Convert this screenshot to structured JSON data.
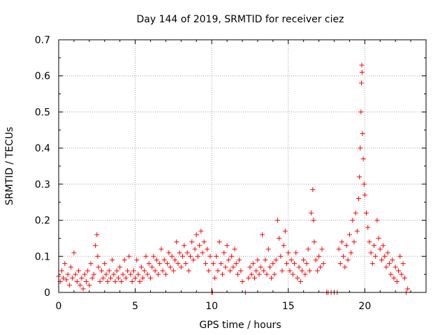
{
  "chart_data": {
    "type": "scatter",
    "title": "Day 144 of 2019, SRMTID for receiver ciez",
    "xlabel": "GPS time / hours",
    "ylabel": "SRMTID / TECUs",
    "xlim": [
      0,
      24
    ],
    "ylim": [
      0,
      0.7
    ],
    "grid": true,
    "marker": "+",
    "xticks": [
      0,
      5,
      10,
      15,
      20
    ],
    "xtick_labels": [
      "0",
      "5",
      "10",
      "15",
      "20"
    ],
    "yticks": [
      0,
      0.1,
      0.2,
      0.3,
      0.4,
      0.5,
      0.6,
      0.7
    ],
    "ytick_labels": [
      "0",
      "0.1",
      "0.2",
      "0.3",
      "0.4",
      "0.5",
      "0.6",
      "0.7"
    ],
    "series": [
      {
        "name": "SRMTID",
        "color": "#ff0000",
        "points": [
          [
            0.0,
            0.045
          ],
          [
            0.1,
            0.03
          ],
          [
            0.2,
            0.06
          ],
          [
            0.3,
            0.04
          ],
          [
            0.4,
            0.08
          ],
          [
            0.5,
            0.035
          ],
          [
            0.6,
            0.05
          ],
          [
            0.7,
            0.02
          ],
          [
            0.8,
            0.07
          ],
          [
            0.9,
            0.04
          ],
          [
            1.0,
            0.11
          ],
          [
            1.1,
            0.05
          ],
          [
            1.2,
            0.03
          ],
          [
            1.3,
            0.06
          ],
          [
            1.4,
            0.02
          ],
          [
            1.5,
            0.04
          ],
          [
            1.6,
            0.01
          ],
          [
            1.7,
            0.05
          ],
          [
            1.8,
            0.03
          ],
          [
            1.9,
            0.06
          ],
          [
            2.0,
            0.02
          ],
          [
            2.1,
            0.08
          ],
          [
            2.2,
            0.04
          ],
          [
            2.3,
            0.05
          ],
          [
            2.4,
            0.13
          ],
          [
            2.5,
            0.16
          ],
          [
            2.55,
            0.1
          ],
          [
            2.6,
            0.07
          ],
          [
            2.7,
            0.03
          ],
          [
            2.8,
            0.06
          ],
          [
            2.9,
            0.04
          ],
          [
            3.0,
            0.08
          ],
          [
            3.1,
            0.05
          ],
          [
            3.2,
            0.03
          ],
          [
            3.3,
            0.06
          ],
          [
            3.4,
            0.04
          ],
          [
            3.5,
            0.09
          ],
          [
            3.6,
            0.05
          ],
          [
            3.7,
            0.03
          ],
          [
            3.8,
            0.06
          ],
          [
            3.9,
            0.04
          ],
          [
            4.0,
            0.07
          ],
          [
            4.1,
            0.03
          ],
          [
            4.2,
            0.05
          ],
          [
            4.3,
            0.09
          ],
          [
            4.4,
            0.04
          ],
          [
            4.5,
            0.06
          ],
          [
            4.6,
            0.1
          ],
          [
            4.7,
            0.05
          ],
          [
            4.8,
            0.03
          ],
          [
            4.9,
            0.06
          ],
          [
            5.0,
            0.04
          ],
          [
            5.1,
            0.09
          ],
          [
            5.2,
            0.05
          ],
          [
            5.3,
            0.03
          ],
          [
            5.4,
            0.07
          ],
          [
            5.5,
            0.04
          ],
          [
            5.6,
            0.06
          ],
          [
            5.7,
            0.1
          ],
          [
            5.8,
            0.05
          ],
          [
            5.9,
            0.08
          ],
          [
            6.0,
            0.04
          ],
          [
            6.1,
            0.07
          ],
          [
            6.2,
            0.1
          ],
          [
            6.3,
            0.06
          ],
          [
            6.4,
            0.09
          ],
          [
            6.5,
            0.05
          ],
          [
            6.6,
            0.08
          ],
          [
            6.7,
            0.12
          ],
          [
            6.8,
            0.06
          ],
          [
            6.9,
            0.09
          ],
          [
            7.0,
            0.05
          ],
          [
            7.1,
            0.08
          ],
          [
            7.2,
            0.11
          ],
          [
            7.3,
            0.07
          ],
          [
            7.4,
            0.1
          ],
          [
            7.5,
            0.06
          ],
          [
            7.6,
            0.09
          ],
          [
            7.7,
            0.14
          ],
          [
            7.8,
            0.08
          ],
          [
            7.9,
            0.11
          ],
          [
            8.0,
            0.07
          ],
          [
            8.1,
            0.1
          ],
          [
            8.2,
            0.13
          ],
          [
            8.3,
            0.08
          ],
          [
            8.4,
            0.11
          ],
          [
            8.5,
            0.06
          ],
          [
            8.6,
            0.1
          ],
          [
            8.7,
            0.14
          ],
          [
            8.8,
            0.09
          ],
          [
            8.9,
            0.12
          ],
          [
            9.0,
            0.16
          ],
          [
            9.1,
            0.1
          ],
          [
            9.2,
            0.13
          ],
          [
            9.3,
            0.17
          ],
          [
            9.4,
            0.11
          ],
          [
            9.5,
            0.14
          ],
          [
            9.6,
            0.08
          ],
          [
            9.7,
            0.12
          ],
          [
            9.8,
            0.06
          ],
          [
            9.9,
            0.1
          ],
          [
            10.0,
            0.0
          ],
          [
            10.05,
            0.0
          ],
          [
            10.1,
            0.08
          ],
          [
            10.2,
            0.04
          ],
          [
            10.3,
            0.1
          ],
          [
            10.4,
            0.06
          ],
          [
            10.5,
            0.14
          ],
          [
            10.6,
            0.08
          ],
          [
            10.7,
            0.05
          ],
          [
            10.8,
            0.11
          ],
          [
            10.9,
            0.07
          ],
          [
            11.0,
            0.13
          ],
          [
            11.1,
            0.09
          ],
          [
            11.2,
            0.06
          ],
          [
            11.3,
            0.1
          ],
          [
            11.4,
            0.07
          ],
          [
            11.5,
            0.12
          ],
          [
            11.6,
            0.08
          ],
          [
            11.7,
            0.05
          ],
          [
            11.8,
            0.09
          ],
          [
            11.9,
            0.06
          ],
          [
            12.0,
            0.03
          ],
          [
            12.2,
            0.0
          ],
          [
            12.4,
            0.04
          ],
          [
            12.5,
            0.07
          ],
          [
            12.6,
            0.05
          ],
          [
            12.7,
            0.08
          ],
          [
            12.8,
            0.04
          ],
          [
            12.9,
            0.06
          ],
          [
            13.0,
            0.09
          ],
          [
            13.1,
            0.05
          ],
          [
            13.2,
            0.07
          ],
          [
            13.3,
            0.16
          ],
          [
            13.4,
            0.06
          ],
          [
            13.5,
            0.09
          ],
          [
            13.6,
            0.05
          ],
          [
            13.7,
            0.12
          ],
          [
            13.8,
            0.07
          ],
          [
            13.9,
            0.04
          ],
          [
            14.0,
            0.08
          ],
          [
            14.1,
            0.05
          ],
          [
            14.2,
            0.09
          ],
          [
            14.3,
            0.2
          ],
          [
            14.4,
            0.15
          ],
          [
            14.5,
            0.1
          ],
          [
            14.6,
            0.06
          ],
          [
            14.7,
            0.13
          ],
          [
            14.8,
            0.17
          ],
          [
            14.9,
            0.08
          ],
          [
            15.0,
            0.11
          ],
          [
            15.1,
            0.06
          ],
          [
            15.2,
            0.09
          ],
          [
            15.3,
            0.05
          ],
          [
            15.4,
            0.08
          ],
          [
            15.5,
            0.11
          ],
          [
            15.6,
            0.04
          ],
          [
            15.7,
            0.07
          ],
          [
            15.8,
            0.03
          ],
          [
            15.9,
            0.06
          ],
          [
            16.0,
            0.09
          ],
          [
            16.1,
            0.05
          ],
          [
            16.2,
            0.08
          ],
          [
            16.3,
            0.12
          ],
          [
            16.4,
            0.06
          ],
          [
            16.5,
            0.22
          ],
          [
            16.6,
            0.285
          ],
          [
            16.65,
            0.2
          ],
          [
            16.7,
            0.14
          ],
          [
            16.8,
            0.09
          ],
          [
            16.9,
            0.06
          ],
          [
            17.0,
            0.1
          ],
          [
            17.1,
            0.07
          ],
          [
            17.2,
            0.12
          ],
          [
            17.3,
            0.08
          ],
          [
            17.5,
            0.0
          ],
          [
            17.6,
            0.0
          ],
          [
            17.8,
            0.0
          ],
          [
            18.0,
            0.0
          ],
          [
            18.2,
            0.0
          ],
          [
            18.3,
            0.12
          ],
          [
            18.4,
            0.08
          ],
          [
            18.5,
            0.14
          ],
          [
            18.6,
            0.1
          ],
          [
            18.7,
            0.07
          ],
          [
            18.8,
            0.13
          ],
          [
            18.9,
            0.09
          ],
          [
            19.0,
            0.16
          ],
          [
            19.1,
            0.11
          ],
          [
            19.2,
            0.2
          ],
          [
            19.3,
            0.14
          ],
          [
            19.4,
            0.22
          ],
          [
            19.5,
            0.17
          ],
          [
            19.6,
            0.26
          ],
          [
            19.65,
            0.32
          ],
          [
            19.7,
            0.4
          ],
          [
            19.75,
            0.5
          ],
          [
            19.78,
            0.58
          ],
          [
            19.8,
            0.63
          ],
          [
            19.82,
            0.61
          ],
          [
            19.85,
            0.44
          ],
          [
            19.9,
            0.37
          ],
          [
            19.95,
            0.3
          ],
          [
            20.0,
            0.27
          ],
          [
            20.1,
            0.22
          ],
          [
            20.2,
            0.18
          ],
          [
            20.3,
            0.14
          ],
          [
            20.4,
            0.11
          ],
          [
            20.5,
            0.08
          ],
          [
            20.6,
            0.13
          ],
          [
            20.7,
            0.1
          ],
          [
            20.8,
            0.2
          ],
          [
            20.9,
            0.15
          ],
          [
            21.0,
            0.12
          ],
          [
            21.1,
            0.09
          ],
          [
            21.2,
            0.13
          ],
          [
            21.3,
            0.1
          ],
          [
            21.4,
            0.07
          ],
          [
            21.5,
            0.11
          ],
          [
            21.6,
            0.08
          ],
          [
            21.7,
            0.05
          ],
          [
            21.8,
            0.09
          ],
          [
            21.9,
            0.04
          ],
          [
            22.0,
            0.07
          ],
          [
            22.1,
            0.03
          ],
          [
            22.2,
            0.06
          ],
          [
            22.3,
            0.1
          ],
          [
            22.4,
            0.05
          ],
          [
            22.5,
            0.08
          ],
          [
            22.6,
            0.04
          ],
          [
            22.7,
            0.0
          ],
          [
            22.8,
            0.01
          ]
        ]
      }
    ]
  }
}
